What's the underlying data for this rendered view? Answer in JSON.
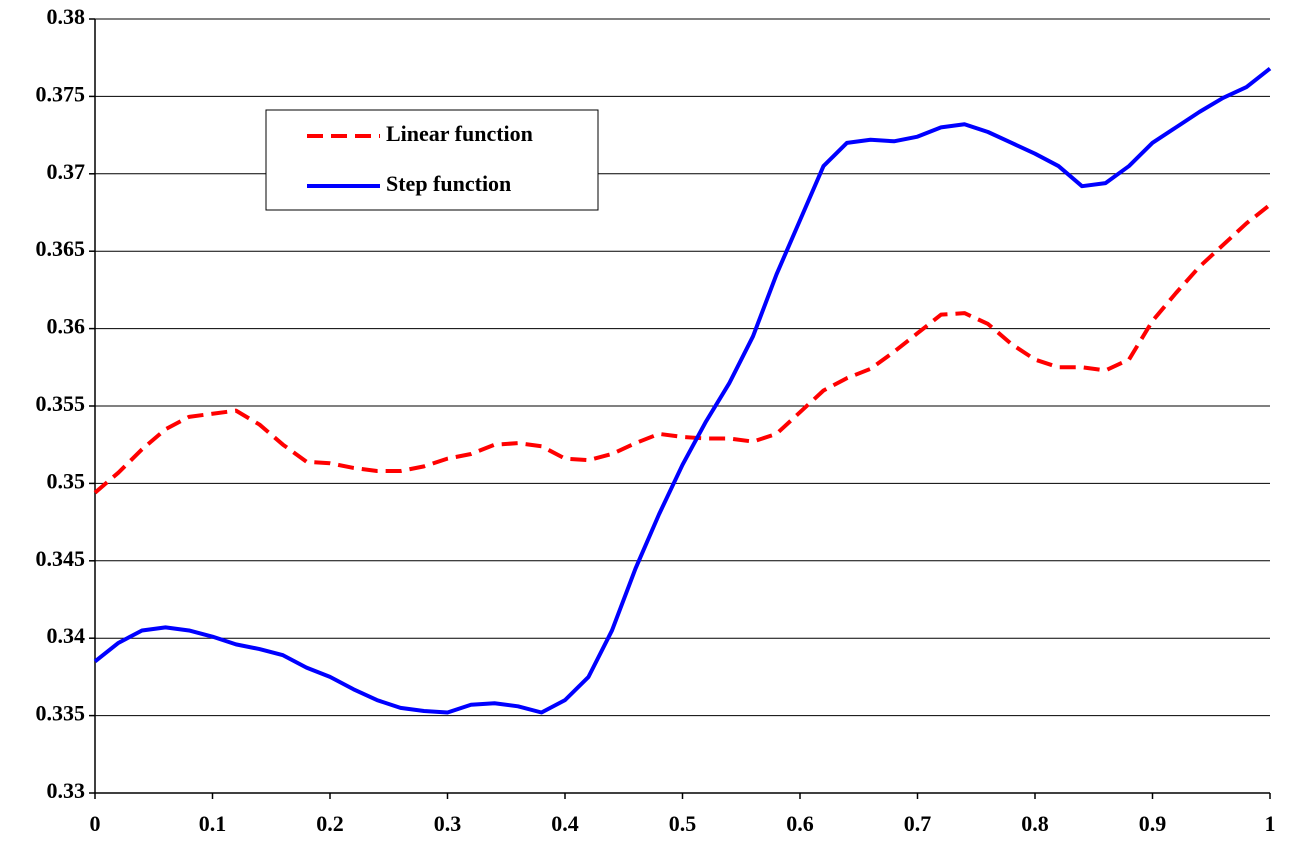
{
  "chart_data": {
    "type": "line",
    "x": [
      0,
      0.02,
      0.04,
      0.06,
      0.08,
      0.1,
      0.12,
      0.14,
      0.16,
      0.18,
      0.2,
      0.22,
      0.24,
      0.26,
      0.28,
      0.3,
      0.32,
      0.34,
      0.36,
      0.38,
      0.4,
      0.42,
      0.44,
      0.46,
      0.48,
      0.5,
      0.52,
      0.54,
      0.56,
      0.58,
      0.6,
      0.62,
      0.64,
      0.66,
      0.68,
      0.7,
      0.72,
      0.74,
      0.76,
      0.78,
      0.8,
      0.82,
      0.84,
      0.86,
      0.88,
      0.9,
      0.92,
      0.94,
      0.96,
      0.98,
      1
    ],
    "series": [
      {
        "name": "Linear function",
        "color": "#ff0000",
        "linestyle": "dashed",
        "values": [
          0.3494,
          0.3507,
          0.3522,
          0.3535,
          0.3543,
          0.3545,
          0.3547,
          0.3538,
          0.3525,
          0.3514,
          0.3513,
          0.351,
          0.3508,
          0.3508,
          0.3511,
          0.3516,
          0.3519,
          0.3525,
          0.3526,
          0.3524,
          0.3516,
          0.3515,
          0.3519,
          0.3526,
          0.3532,
          0.353,
          0.3529,
          0.3529,
          0.3527,
          0.3532,
          0.3546,
          0.356,
          0.3568,
          0.3574,
          0.3585,
          0.3597,
          0.3609,
          0.361,
          0.3603,
          0.359,
          0.358,
          0.3575,
          0.3575,
          0.3573,
          0.358,
          0.3605,
          0.3623,
          0.364,
          0.3654,
          0.3668,
          0.368
        ]
      },
      {
        "name": "Step function",
        "color": "#0000ff",
        "linestyle": "solid",
        "values": [
          0.3385,
          0.3397,
          0.3405,
          0.3407,
          0.3405,
          0.3401,
          0.3396,
          0.3393,
          0.3389,
          0.3381,
          0.3375,
          0.3367,
          0.336,
          0.3355,
          0.3353,
          0.3352,
          0.3357,
          0.3358,
          0.3356,
          0.3352,
          0.336,
          0.3375,
          0.3405,
          0.3445,
          0.348,
          0.3512,
          0.354,
          0.3565,
          0.3595,
          0.3635,
          0.367,
          0.3705,
          0.372,
          0.3722,
          0.3721,
          0.3724,
          0.373,
          0.3732,
          0.3727,
          0.372,
          0.3713,
          0.3705,
          0.3692,
          0.3694,
          0.3705,
          0.372,
          0.373,
          0.374,
          0.3749,
          0.3756,
          0.3768
        ]
      }
    ],
    "xlim": [
      0,
      1
    ],
    "xticks": [
      0,
      0.1,
      0.2,
      0.3,
      0.4,
      0.5,
      0.6,
      0.7,
      0.8,
      0.9,
      1
    ],
    "ylim": [
      0.33,
      0.38
    ],
    "yticks": [
      0.33,
      0.335,
      0.34,
      0.345,
      0.35,
      0.355,
      0.36,
      0.365,
      0.37,
      0.375,
      0.38
    ],
    "grid": true,
    "legend_position": "upper left"
  }
}
